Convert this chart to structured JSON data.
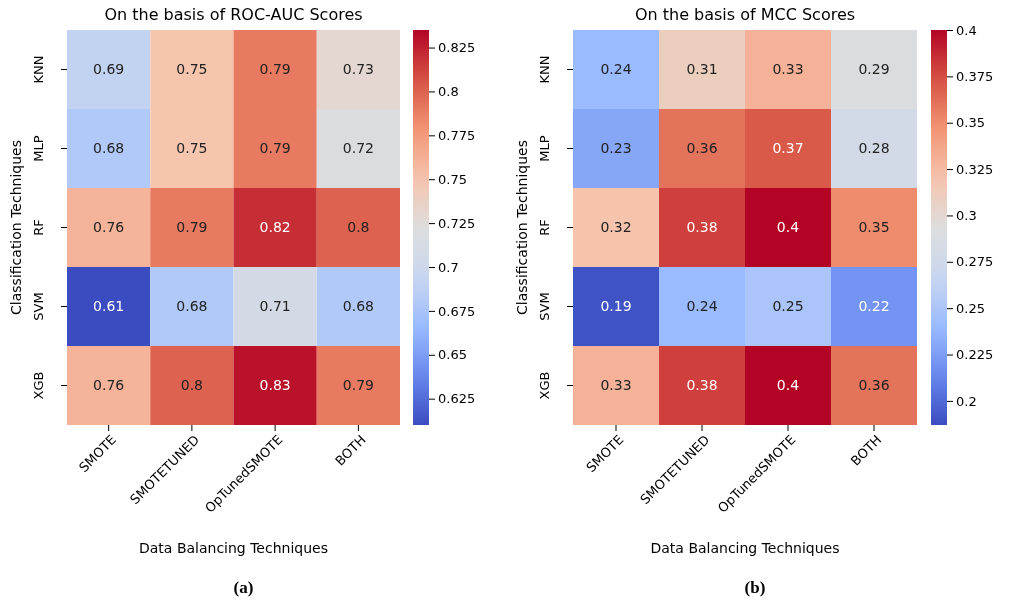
{
  "chart_data": [
    {
      "type": "heatmap",
      "title": "On the basis of ROC-AUC Scores",
      "xlabel": "Data Balancing Techniques",
      "ylabel": "Classification Techniques",
      "categories": [
        "SMOTE",
        "SMOTETUNED",
        "OpTunedSMOTE",
        "BOTH"
      ],
      "y_categories": [
        "KNN",
        "MLP",
        "RF",
        "SVM",
        "XGB"
      ],
      "cells": [
        [
          0.69,
          0.75,
          0.79,
          0.73
        ],
        [
          0.68,
          0.75,
          0.79,
          0.72
        ],
        [
          0.76,
          0.79,
          0.82,
          0.8
        ],
        [
          0.61,
          0.68,
          0.71,
          0.68
        ],
        [
          0.76,
          0.8,
          0.83,
          0.79
        ]
      ],
      "data_labels": true,
      "clim": [
        0.61,
        0.835
      ],
      "cticks": [
        0.625,
        0.65,
        0.675,
        0.7,
        0.725,
        0.75,
        0.775,
        0.8,
        0.825
      ],
      "annotations": [
        "(a)"
      ]
    },
    {
      "type": "heatmap",
      "title": "On the basis of MCC Scores",
      "xlabel": "Data Balancing Techniques",
      "ylabel": "Classification Techniques",
      "categories": [
        "SMOTE",
        "SMOTETUNED",
        "OpTunedSMOTE",
        "BOTH"
      ],
      "y_categories": [
        "KNN",
        "MLP",
        "RF",
        "SVM",
        "XGB"
      ],
      "cells": [
        [
          0.24,
          0.31,
          0.33,
          0.29
        ],
        [
          0.23,
          0.36,
          0.37,
          0.28
        ],
        [
          0.32,
          0.38,
          0.4,
          0.35
        ],
        [
          0.19,
          0.24,
          0.25,
          0.22
        ],
        [
          0.33,
          0.38,
          0.4,
          0.36
        ]
      ],
      "data_labels": true,
      "clim": [
        0.187,
        0.4
      ],
      "cticks": [
        0.2,
        0.225,
        0.25,
        0.275,
        0.3,
        0.325,
        0.35,
        0.375,
        0.4
      ],
      "annotations": [
        "(b)"
      ]
    }
  ]
}
